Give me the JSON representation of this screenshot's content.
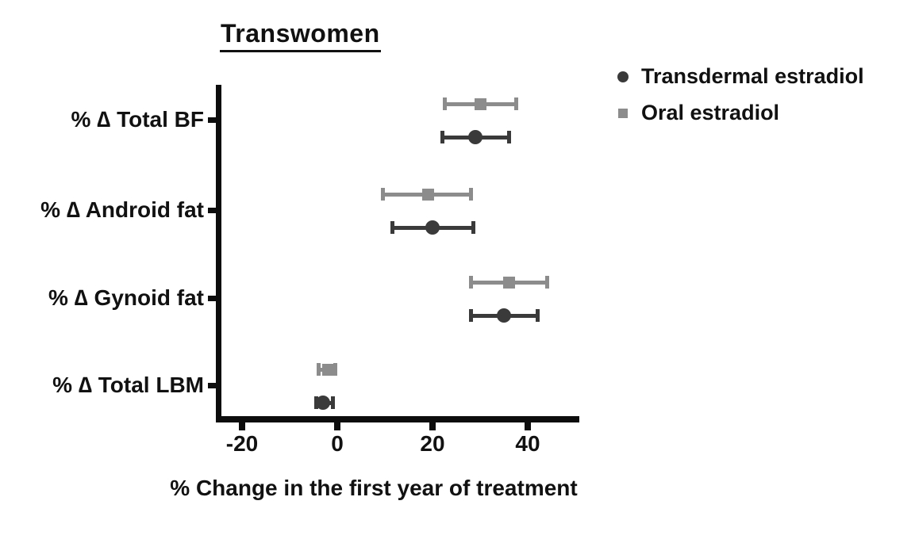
{
  "title": "Transwomen",
  "legend": [
    {
      "label": "Transdermal estradiol",
      "marker": "circle",
      "color": "#3a3a3a"
    },
    {
      "label": "Oral estradiol",
      "marker": "square",
      "color": "#8c8c8c"
    }
  ],
  "chart_data": {
    "type": "scatter",
    "subtype": "horizontal-point-estimates-with-error-bars",
    "title": "Transwomen",
    "xlabel": "% Change in the first year of treatment",
    "categories": [
      "% ∆ Total BF",
      "% ∆ Android fat",
      "% ∆ Gynoid fat",
      "% ∆ Total LBM"
    ],
    "xticks": [
      -20,
      0,
      20,
      40
    ],
    "xtick_labels": [
      "-20",
      "0",
      "20",
      "40"
    ],
    "xlim": [
      -25,
      50
    ],
    "grid": false,
    "legend_position": "upper-right-outside",
    "series": [
      {
        "name": "Oral estradiol",
        "marker": "square",
        "color": "#8c8c8c",
        "values": [
          30,
          19,
          36,
          -2
        ],
        "ci_low": [
          22.5,
          9.5,
          28,
          -4
        ],
        "ci_high": [
          37.5,
          28,
          44,
          -0.5
        ]
      },
      {
        "name": "Transdermal estradiol",
        "marker": "circle",
        "color": "#3a3a3a",
        "values": [
          29,
          20,
          35,
          -3
        ],
        "ci_low": [
          22,
          11.5,
          28,
          -4.5
        ],
        "ci_high": [
          36,
          28.5,
          42,
          -1
        ]
      }
    ]
  }
}
